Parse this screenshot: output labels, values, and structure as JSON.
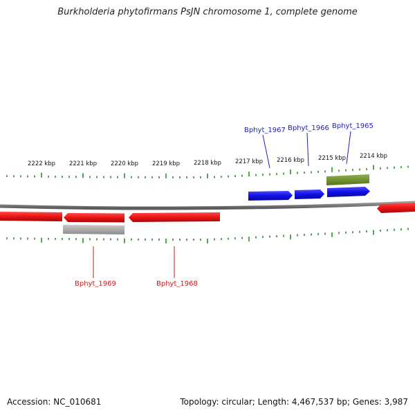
{
  "title": "Burkholderia phytofirmans PsJN chromosome 1, complete genome",
  "footer": {
    "accession": "Accession: NC_010681",
    "summary": "Topology: circular; Length: 4,467,537 bp; Genes: 3,987"
  },
  "scale": {
    "unit": "kbp",
    "ticks": [
      "2222 kbp",
      "2221 kbp",
      "2220 kbp",
      "2219 kbp",
      "2218 kbp",
      "2217 kbp",
      "2216 kbp",
      "2215 kbp",
      "2214 kbp"
    ],
    "tick_color": "#2e8b2e"
  },
  "genes": {
    "forward_labels": [
      "Bphyt_1967",
      "Bphyt_1966",
      "Bphyt_1965"
    ],
    "reverse_labels": [
      "Bphyt_1969",
      "Bphyt_1968"
    ],
    "forward_label_color": "#1f1fb4",
    "reverse_label_color": "#c41c1c",
    "colors": {
      "forward_strand": "#1212e0",
      "reverse_strand": "#e81414",
      "highlight_forward": "#6b8e23",
      "highlight_reverse": "#a8a8a8",
      "backbone": "#7a7a7a"
    }
  }
}
